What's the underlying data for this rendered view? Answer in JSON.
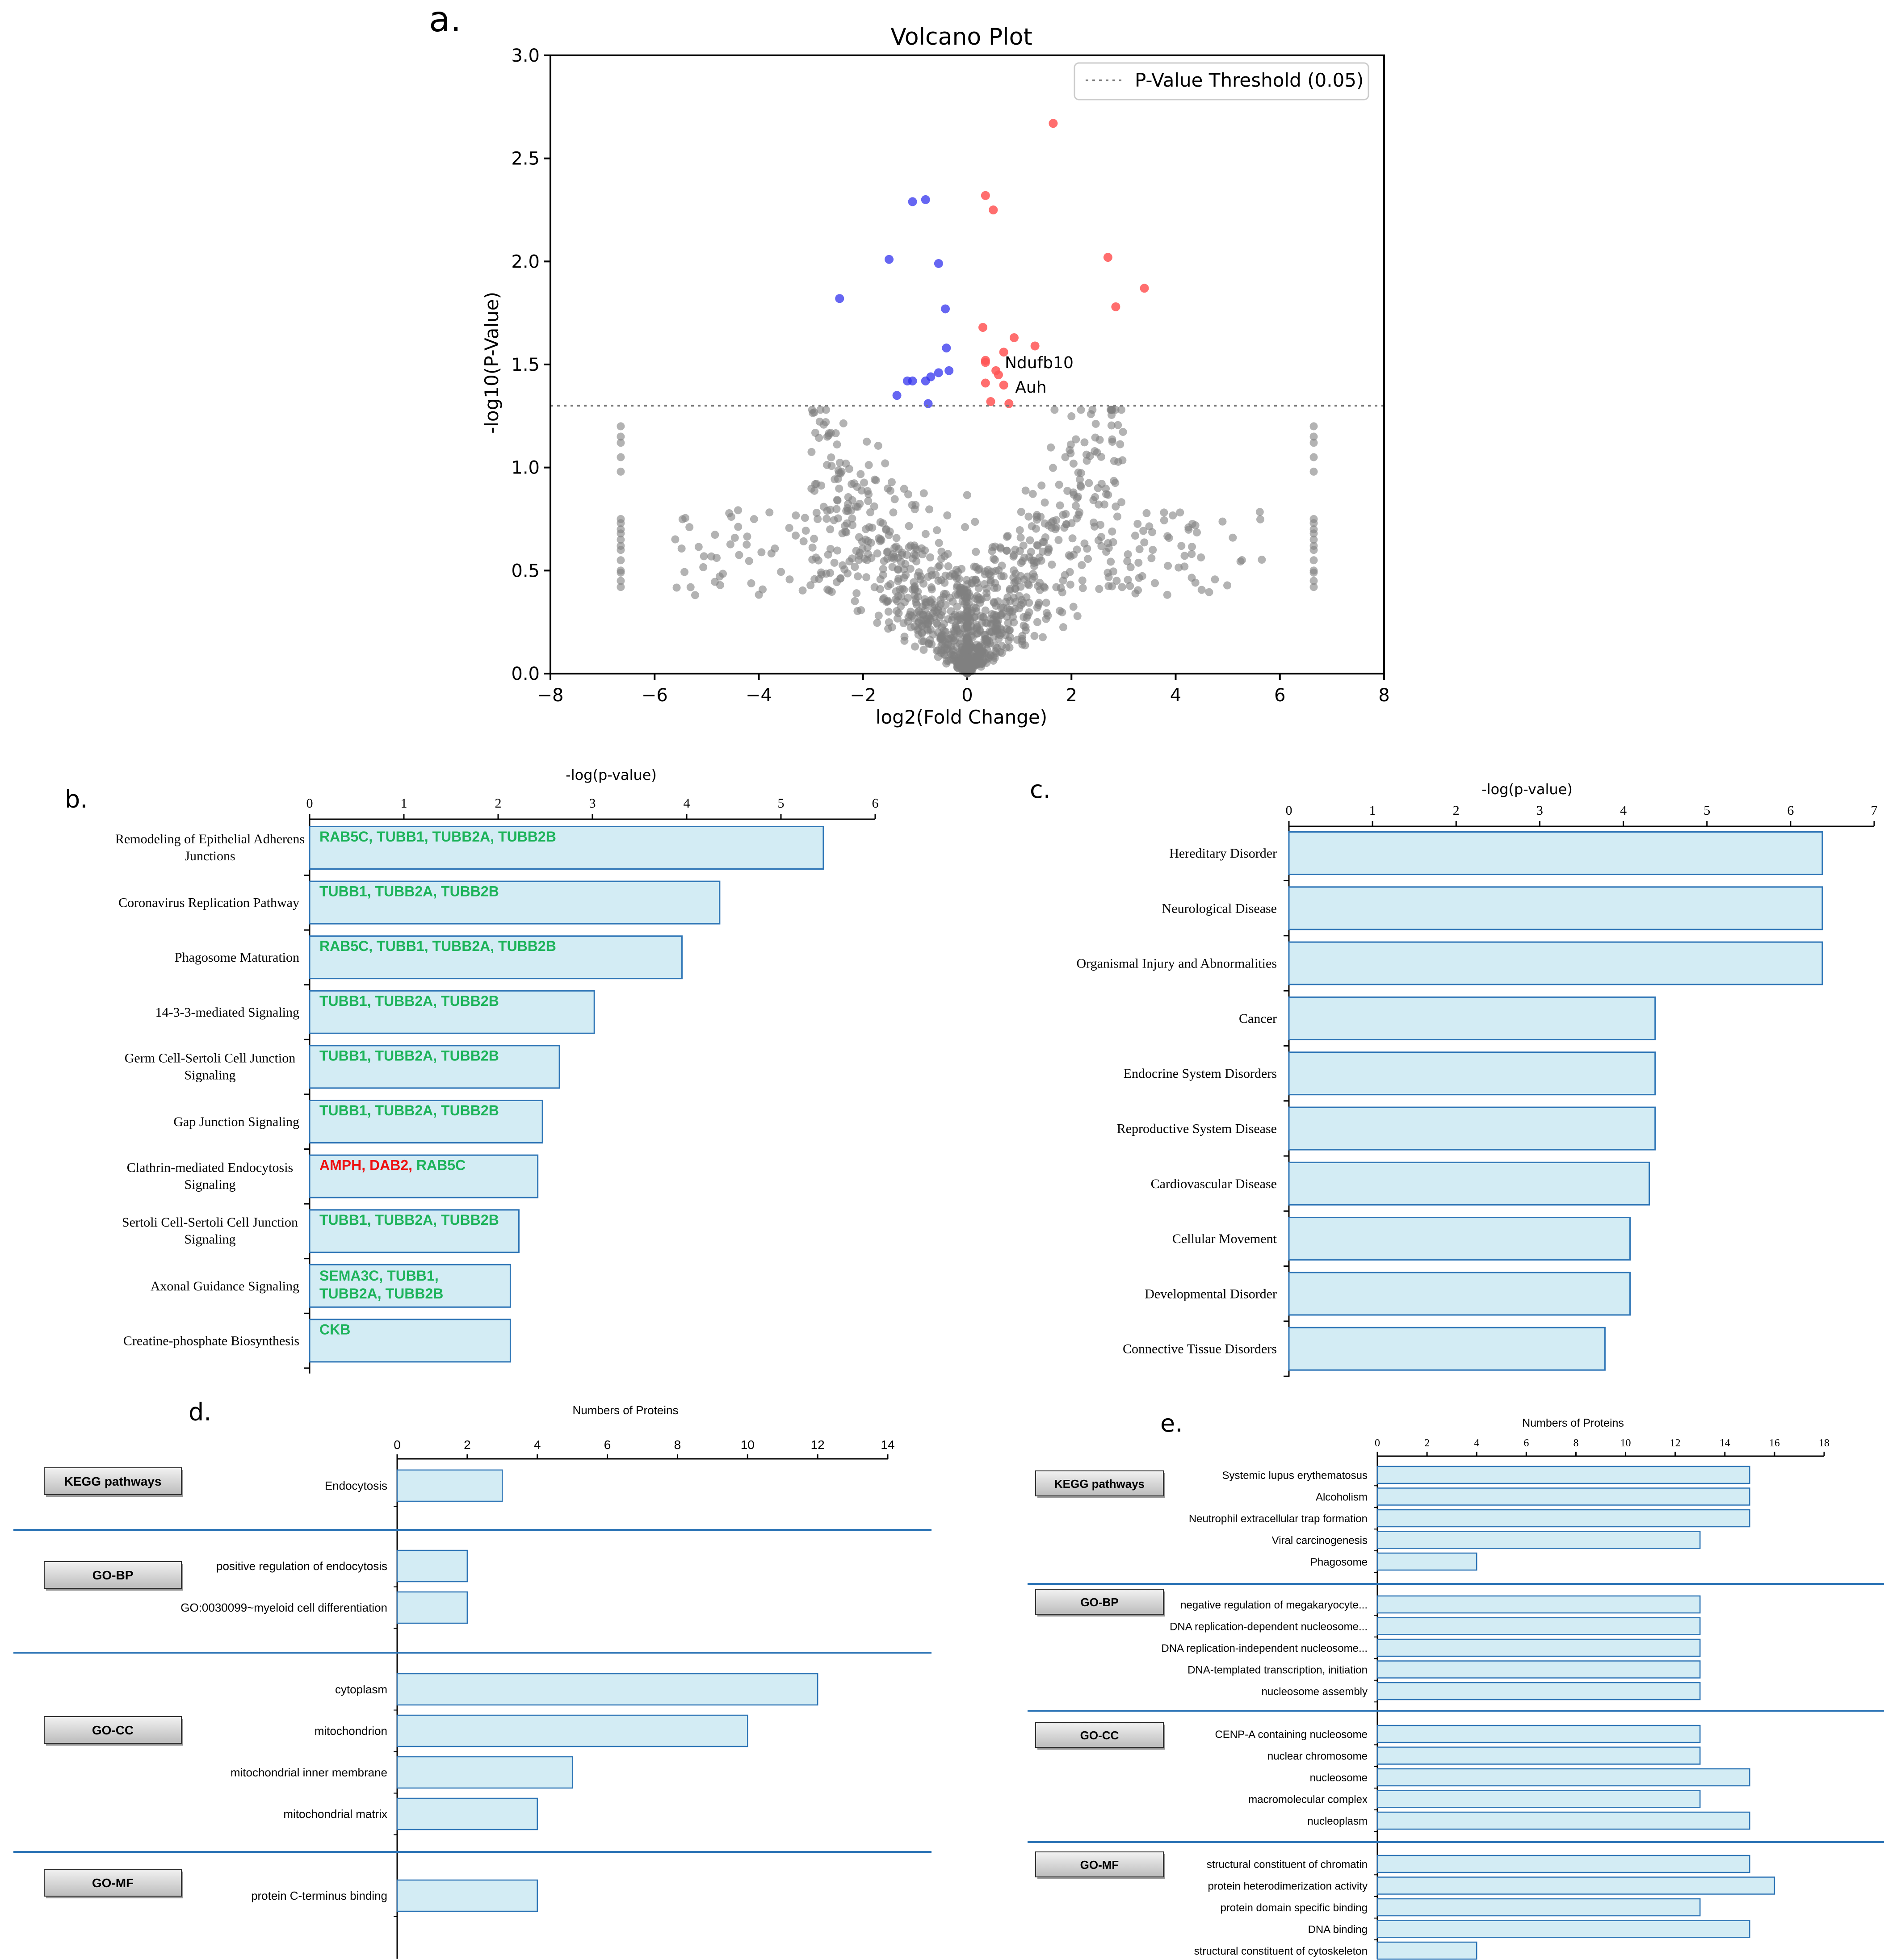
{
  "chart_data": [
    {
      "panel": "a.",
      "type": "scatter",
      "title": "Volcano Plot",
      "xlabel": "log2(Fold Change)",
      "ylabel": "-log10(P-Value)",
      "xlim": [
        -8,
        8
      ],
      "ylim": [
        0,
        3
      ],
      "xticks": [
        "−8",
        "−6",
        "−4",
        "−2",
        "0",
        "2",
        "4",
        "6",
        "8"
      ],
      "yticks": [
        "0.0",
        "0.5",
        "1.0",
        "1.5",
        "2.0",
        "2.5",
        "3.0"
      ],
      "threshold": 1.3,
      "legend": "P-Value Threshold (0.05)",
      "colors": {
        "up": "#ff5555",
        "down": "#3333ee",
        "ns": "#808080"
      },
      "up": [
        [
          1.65,
          2.67
        ],
        [
          0.35,
          2.32
        ],
        [
          0.5,
          2.25
        ],
        [
          2.7,
          2.02
        ],
        [
          3.4,
          1.87
        ],
        [
          2.85,
          1.78
        ],
        [
          0.3,
          1.68
        ],
        [
          0.9,
          1.63
        ],
        [
          1.3,
          1.59
        ],
        [
          0.7,
          1.56
        ],
        [
          0.35,
          1.52
        ],
        [
          0.35,
          1.51
        ],
        [
          0.6,
          1.45
        ],
        [
          0.35,
          1.41
        ],
        [
          0.7,
          1.4
        ],
        [
          0.45,
          1.32
        ],
        [
          0.8,
          1.31
        ],
        [
          0.55,
          1.47
        ]
      ],
      "down": [
        [
          -1.05,
          2.29
        ],
        [
          -0.8,
          2.3
        ],
        [
          -1.5,
          2.01
        ],
        [
          -0.55,
          1.99
        ],
        [
          -2.45,
          1.82
        ],
        [
          -0.42,
          1.77
        ],
        [
          -0.4,
          1.58
        ],
        [
          -0.35,
          1.47
        ],
        [
          -0.55,
          1.46
        ],
        [
          -0.7,
          1.44
        ],
        [
          -0.8,
          1.42
        ],
        [
          -1.05,
          1.42
        ],
        [
          -1.15,
          1.42
        ],
        [
          -1.35,
          1.35
        ],
        [
          -0.75,
          1.31
        ]
      ],
      "annotations": [
        {
          "text": "Ndufb10",
          "x": 0.6,
          "y": 1.47
        },
        {
          "text": "Auh",
          "x": 0.8,
          "y": 1.35
        }
      ]
    },
    {
      "panel": "b.",
      "type": "bar",
      "orientation": "horizontal",
      "xlabel": "-log(p-value)",
      "xlim": [
        0,
        6
      ],
      "xticks": [
        "0",
        "1",
        "2",
        "3",
        "4",
        "5",
        "6"
      ],
      "categories": [
        [
          "Remodeling of Epithelial Adherens",
          "Junctions"
        ],
        [
          "Coronavirus Replication Pathway"
        ],
        [
          "Phagosome Maturation"
        ],
        [
          "14-3-3-mediated Signaling"
        ],
        [
          "Germ Cell-Sertoli Cell Junction",
          "Signaling"
        ],
        [
          "Gap Junction Signaling"
        ],
        [
          "Clathrin-mediated Endocytosis",
          "Signaling"
        ],
        [
          "Sertoli Cell-Sertoli Cell Junction",
          "Signaling"
        ],
        [
          "Axonal Guidance Signaling"
        ],
        [
          "Creatine-phosphate Biosynthesis"
        ]
      ],
      "values": [
        5.45,
        4.35,
        3.95,
        3.02,
        2.65,
        2.47,
        2.42,
        2.22,
        2.13,
        2.13
      ],
      "genes": [
        [
          [
            "RAB5C, TUBB1, TUBB2A, TUBB2B",
            "green"
          ]
        ],
        [
          [
            "TUBB1, TUBB2A, TUBB2B",
            "green"
          ]
        ],
        [
          [
            "RAB5C, TUBB1, TUBB2A, TUBB2B",
            "green"
          ]
        ],
        [
          [
            "TUBB1, TUBB2A, TUBB2B",
            "green"
          ]
        ],
        [
          [
            "TUBB1, TUBB2A, TUBB2B",
            "green"
          ]
        ],
        [
          [
            "TUBB1, TUBB2A, TUBB2B",
            "green"
          ]
        ],
        [
          [
            "AMPH, DAB2, ",
            "red"
          ],
          [
            "RAB5C",
            "green"
          ]
        ],
        [
          [
            "TUBB1, TUBB2A, TUBB2B",
            "green"
          ]
        ],
        [
          [
            "SEMA3C, TUBB1,",
            "green"
          ],
          [
            "\n",
            "green"
          ],
          [
            "TUBB2A, TUBB2B",
            "green"
          ]
        ],
        [
          [
            "CKB",
            "green"
          ]
        ]
      ],
      "gene_colors": {
        "green": "#1db35a",
        "red": "#ee1111"
      }
    },
    {
      "panel": "c.",
      "type": "bar",
      "orientation": "horizontal",
      "xlabel": "-log(p-value)",
      "xlim": [
        0,
        7
      ],
      "xticks": [
        "0",
        "1",
        "2",
        "3",
        "4",
        "5",
        "6",
        "7"
      ],
      "categories": [
        "Hereditary Disorder",
        "Neurological Disease",
        "Organismal Injury and Abnormalities",
        "Cancer",
        "Endocrine System Disorders",
        "Reproductive System Disease",
        "Cardiovascular Disease",
        "Cellular Movement",
        "Developmental Disorder",
        "Connective Tissue Disorders"
      ],
      "values": [
        6.38,
        6.38,
        6.38,
        4.38,
        4.38,
        4.38,
        4.31,
        4.08,
        4.08,
        3.78
      ]
    },
    {
      "panel": "d.",
      "type": "bar",
      "orientation": "horizontal",
      "xlabel": "Numbers of Proteins",
      "xlim": [
        0,
        14
      ],
      "xticks": [
        "0",
        "2",
        "4",
        "6",
        "8",
        "10",
        "12",
        "14"
      ],
      "groups": [
        {
          "name": "KEGG pathways",
          "terms": [
            "Endocytosis"
          ],
          "values": [
            3
          ]
        },
        {
          "name": "GO-BP",
          "terms": [
            "positive regulation of endocytosis",
            "GO:0030099~myeloid cell differentiation"
          ],
          "values": [
            2,
            2
          ]
        },
        {
          "name": "GO-CC",
          "terms": [
            "cytoplasm",
            "mitochondrion",
            "mitochondrial inner membrane",
            "mitochondrial matrix"
          ],
          "values": [
            12,
            10,
            5,
            4
          ]
        },
        {
          "name": "GO-MF",
          "terms": [
            "protein C-terminus binding"
          ],
          "values": [
            4
          ]
        }
      ]
    },
    {
      "panel": "e.",
      "type": "bar",
      "orientation": "horizontal",
      "xlabel": "Numbers of Proteins",
      "xlim": [
        0,
        18
      ],
      "xticks": [
        "0",
        "2",
        "4",
        "6",
        "8",
        "10",
        "12",
        "14",
        "16",
        "18"
      ],
      "groups": [
        {
          "name": "KEGG pathways",
          "terms": [
            "Systemic lupus erythematosus",
            "Alcoholism",
            "Neutrophil extracellular trap formation",
            "Viral carcinogenesis",
            "Phagosome"
          ],
          "values": [
            15,
            15,
            15,
            13,
            4
          ]
        },
        {
          "name": "GO-BP",
          "terms": [
            "negative regulation of megakaryocyte...",
            "DNA replication-dependent nucleosome...",
            "DNA replication-independent nucleosome...",
            "DNA-templated transcription, initiation",
            "nucleosome assembly"
          ],
          "values": [
            13,
            13,
            13,
            13,
            13
          ]
        },
        {
          "name": "GO-CC",
          "terms": [
            "CENP-A containing nucleosome",
            "nuclear chromosome",
            "nucleosome",
            "macromolecular complex",
            "nucleoplasm"
          ],
          "values": [
            13,
            13,
            15,
            13,
            15
          ]
        },
        {
          "name": "GO-MF",
          "terms": [
            "structural constituent of chromatin",
            "protein heterodimerization activity",
            "protein domain specific binding",
            "DNA binding",
            "structural constituent of cytoskeleton"
          ],
          "values": [
            15,
            16,
            13,
            15,
            4
          ]
        }
      ]
    }
  ]
}
